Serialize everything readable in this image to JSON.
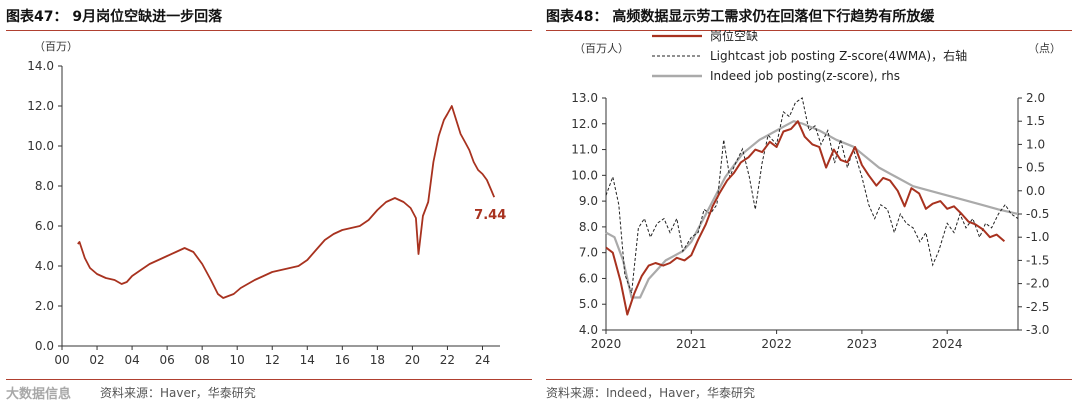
{
  "left": {
    "title": "图表47：  9月岗位空缺进一步回落",
    "source": "资料来源：Haver，华泰研究",
    "unit_label": "（百万）",
    "end_label": "7.44"
  },
  "right": {
    "title": "图表48：  高频数据显示劳工需求仍在回落但下行趋势有所放缓",
    "source": "资料来源：Indeed，Haver，华泰研究",
    "left_unit": "（百万人）",
    "right_unit": "（点）"
  },
  "watermark": "大数据信息",
  "colors": {
    "openings": "#a8321f",
    "lightcast": "#222222",
    "indeed": "#aaaaaa",
    "accent_rule": "#b04030"
  },
  "chart_data": [
    {
      "type": "line",
      "title": "图表47：  9月岗位空缺进一步回落",
      "ylabel": "（百万）",
      "ylim": [
        0,
        14
      ],
      "yticks": [
        "0.0",
        "2.0",
        "4.0",
        "6.0",
        "8.0",
        "10.0",
        "12.0",
        "14.0"
      ],
      "xlim": [
        2000,
        2025
      ],
      "xticks": [
        "00",
        "02",
        "04",
        "06",
        "08",
        "10",
        "12",
        "14",
        "16",
        "18",
        "20",
        "22",
        "24"
      ],
      "grid": false,
      "series": [
        {
          "name": "岗位空缺",
          "x": [
            2000.9,
            2001.0,
            2001.3,
            2001.6,
            2002.0,
            2002.5,
            2003.0,
            2003.4,
            2003.7,
            2004.0,
            2004.5,
            2005.0,
            2005.5,
            2006.0,
            2006.5,
            2007.0,
            2007.5,
            2008.0,
            2008.5,
            2008.9,
            2009.2,
            2009.5,
            2009.8,
            2010.2,
            2010.6,
            2011.0,
            2011.5,
            2012.0,
            2012.5,
            2013.0,
            2013.5,
            2014.0,
            2014.5,
            2015.0,
            2015.5,
            2016.0,
            2016.5,
            2017.0,
            2017.5,
            2018.0,
            2018.5,
            2019.0,
            2019.5,
            2019.9,
            2020.2,
            2020.35,
            2020.6,
            2020.9,
            2021.2,
            2021.5,
            2021.8,
            2022.0,
            2022.25,
            2022.5,
            2022.75,
            2023.0,
            2023.25,
            2023.5,
            2023.75,
            2024.0,
            2024.25,
            2024.5,
            2024.67
          ],
          "values": [
            5.1,
            5.2,
            4.4,
            3.9,
            3.6,
            3.4,
            3.3,
            3.1,
            3.2,
            3.5,
            3.8,
            4.1,
            4.3,
            4.5,
            4.7,
            4.9,
            4.7,
            4.1,
            3.3,
            2.6,
            2.4,
            2.5,
            2.6,
            2.9,
            3.1,
            3.3,
            3.5,
            3.7,
            3.8,
            3.9,
            4.0,
            4.3,
            4.8,
            5.3,
            5.6,
            5.8,
            5.9,
            6.0,
            6.3,
            6.8,
            7.2,
            7.4,
            7.2,
            6.9,
            6.4,
            4.6,
            6.5,
            7.2,
            9.2,
            10.5,
            11.3,
            11.6,
            12.0,
            11.3,
            10.6,
            10.2,
            9.8,
            9.2,
            8.8,
            8.6,
            8.3,
            7.8,
            7.44
          ]
        }
      ],
      "annotations": [
        "7.44"
      ]
    },
    {
      "type": "line",
      "title": "图表48：  高频数据显示劳工需求仍在回落但下行趋势有所放缓",
      "ylabel": "（百万人）",
      "y2label": "（点）",
      "ylim": [
        4.0,
        13.0
      ],
      "y2lim": [
        -3.0,
        2.0
      ],
      "yticks": [
        "4.0",
        "5.0",
        "6.0",
        "7.0",
        "8.0",
        "9.0",
        "10.0",
        "11.0",
        "12.0",
        "13.0"
      ],
      "y2ticks": [
        "-3.0",
        "-2.5",
        "-2.0",
        "-1.5",
        "-1.0",
        "-0.5",
        "0.0",
        "0.5",
        "1.0",
        "1.5",
        "2.0"
      ],
      "xlim": [
        2020,
        2024.83
      ],
      "xticks": [
        "2020",
        "2021",
        "2022",
        "2023",
        "2024"
      ],
      "grid": false,
      "legend_position": "top-left",
      "series": [
        {
          "name": "岗位空缺",
          "axis": "left",
          "x": [
            2020.0,
            2020.08,
            2020.17,
            2020.25,
            2020.33,
            2020.42,
            2020.5,
            2020.58,
            2020.67,
            2020.75,
            2020.83,
            2020.92,
            2021.0,
            2021.08,
            2021.17,
            2021.25,
            2021.33,
            2021.42,
            2021.5,
            2021.58,
            2021.67,
            2021.75,
            2021.83,
            2021.92,
            2022.0,
            2022.08,
            2022.17,
            2022.25,
            2022.33,
            2022.42,
            2022.5,
            2022.58,
            2022.67,
            2022.75,
            2022.83,
            2022.92,
            2023.0,
            2023.08,
            2023.17,
            2023.25,
            2023.33,
            2023.42,
            2023.5,
            2023.58,
            2023.67,
            2023.75,
            2023.83,
            2023.92,
            2024.0,
            2024.08,
            2024.17,
            2024.25,
            2024.33,
            2024.42,
            2024.5,
            2024.58,
            2024.67
          ],
          "values": [
            7.2,
            7.0,
            5.9,
            4.6,
            5.4,
            6.1,
            6.5,
            6.6,
            6.5,
            6.6,
            6.8,
            6.7,
            6.9,
            7.5,
            8.1,
            8.8,
            9.3,
            9.8,
            10.1,
            10.5,
            10.7,
            11.0,
            10.9,
            11.3,
            11.1,
            11.7,
            11.8,
            12.1,
            11.5,
            11.2,
            11.1,
            10.3,
            11.0,
            10.6,
            10.5,
            11.1,
            10.4,
            10.0,
            9.6,
            9.9,
            9.8,
            9.4,
            8.8,
            9.5,
            9.3,
            8.7,
            8.9,
            9.0,
            8.7,
            8.8,
            8.5,
            8.2,
            8.1,
            7.9,
            7.6,
            7.7,
            7.44
          ]
        },
        {
          "name": "Lightcast job posting Z-score(4WMA)，右轴",
          "axis": "right",
          "x": [
            2020.0,
            2020.08,
            2020.15,
            2020.22,
            2020.3,
            2020.38,
            2020.45,
            2020.52,
            2020.6,
            2020.68,
            2020.75,
            2020.83,
            2020.9,
            2021.0,
            2021.08,
            2021.15,
            2021.22,
            2021.3,
            2021.38,
            2021.45,
            2021.52,
            2021.6,
            2021.68,
            2021.75,
            2021.83,
            2021.9,
            2022.0,
            2022.08,
            2022.15,
            2022.22,
            2022.3,
            2022.38,
            2022.45,
            2022.52,
            2022.6,
            2022.68,
            2022.75,
            2022.83,
            2022.9,
            2023.0,
            2023.08,
            2023.15,
            2023.22,
            2023.3,
            2023.38,
            2023.45,
            2023.52,
            2023.6,
            2023.68,
            2023.75,
            2023.83,
            2023.9,
            2024.0,
            2024.08,
            2024.15,
            2024.22,
            2024.3,
            2024.38,
            2024.45,
            2024.52,
            2024.6,
            2024.68,
            2024.75,
            2024.83
          ],
          "values": [
            -0.1,
            0.3,
            -0.3,
            -1.8,
            -2.2,
            -0.8,
            -0.6,
            -1.0,
            -0.7,
            -0.6,
            -0.9,
            -0.6,
            -1.3,
            -1.0,
            -0.9,
            -0.4,
            -0.5,
            -0.3,
            1.1,
            0.3,
            0.6,
            0.9,
            0.3,
            -0.4,
            0.6,
            1.2,
            1.0,
            1.7,
            1.6,
            1.9,
            2.0,
            1.3,
            1.4,
            1.0,
            1.3,
            0.6,
            1.1,
            0.5,
            0.9,
            0.3,
            -0.3,
            -0.6,
            -0.3,
            -0.4,
            -0.9,
            -0.5,
            -0.7,
            -0.8,
            -1.1,
            -0.9,
            -1.6,
            -1.3,
            -0.7,
            -0.9,
            -0.5,
            -0.8,
            -0.6,
            -1.0,
            -0.7,
            -0.8,
            -0.5,
            -0.3,
            -0.5,
            -0.6
          ]
        },
        {
          "name": "Indeed job posting(z-score), rhs",
          "axis": "right",
          "x": [
            2020.0,
            2020.1,
            2020.2,
            2020.3,
            2020.4,
            2020.5,
            2020.6,
            2020.7,
            2020.8,
            2020.9,
            2021.0,
            2021.2,
            2021.4,
            2021.6,
            2021.8,
            2022.0,
            2022.1,
            2022.2,
            2022.3,
            2022.5,
            2022.7,
            2022.9,
            2023.0,
            2023.2,
            2023.4,
            2023.6,
            2023.8,
            2024.0,
            2024.2,
            2024.4,
            2024.6,
            2024.83
          ],
          "values": [
            -0.9,
            -1.0,
            -1.5,
            -2.3,
            -2.3,
            -1.9,
            -1.7,
            -1.5,
            -1.4,
            -1.3,
            -1.1,
            -0.4,
            0.3,
            0.8,
            1.1,
            1.3,
            1.4,
            1.5,
            1.45,
            1.3,
            1.1,
            0.95,
            0.8,
            0.5,
            0.3,
            0.1,
            0.0,
            -0.1,
            -0.2,
            -0.3,
            -0.4,
            -0.5
          ]
        }
      ]
    }
  ]
}
